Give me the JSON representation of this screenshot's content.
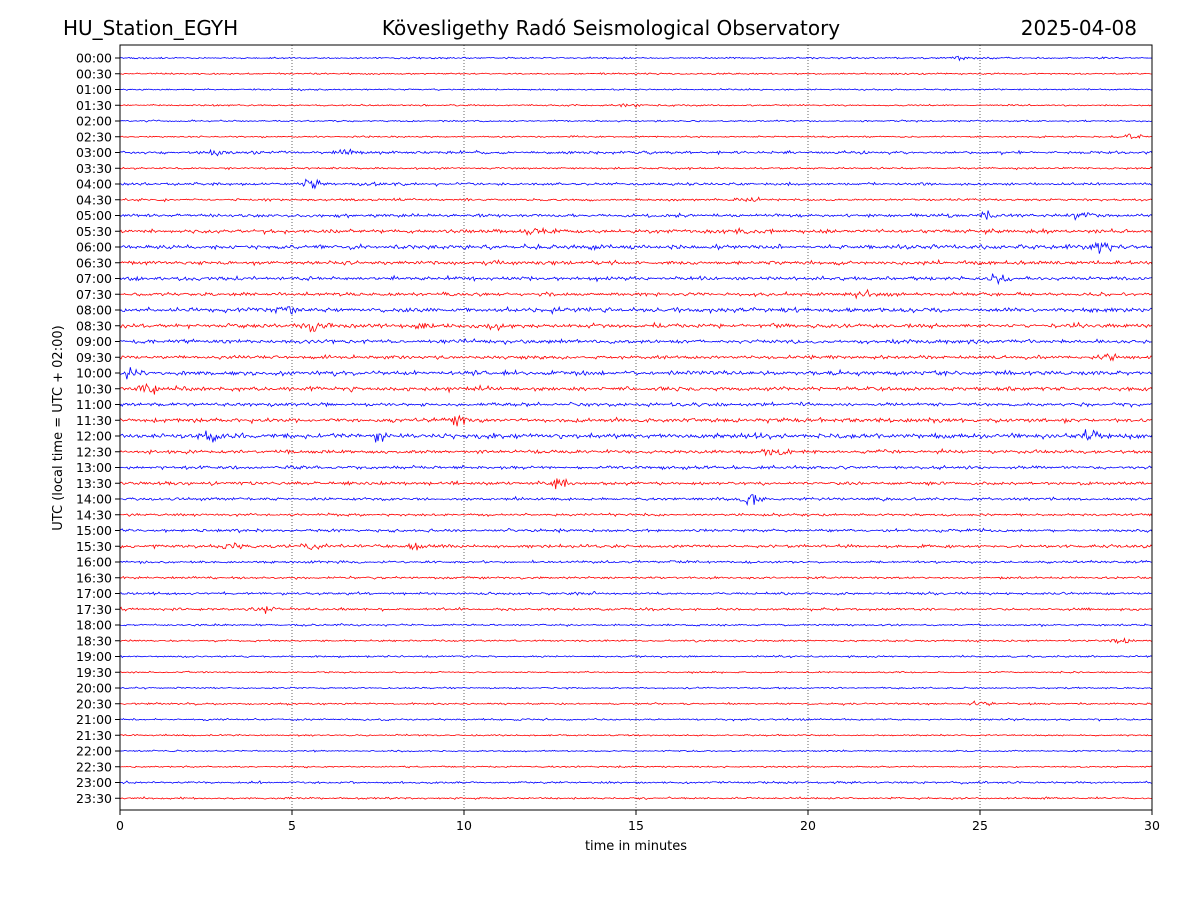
{
  "header": {
    "station": "HU_Station_EGYH",
    "observatory": "Kövesligethy Radó Seismological Observatory",
    "date": "2025-04-08"
  },
  "chart_data": {
    "type": "line",
    "title": "Kövesligethy Radó Seismological Observatory",
    "xlabel": "time in minutes",
    "ylabel": "UTC (local time = UTC + 02:00)",
    "xlim": [
      0,
      30
    ],
    "x_ticks": [
      0,
      5,
      10,
      15,
      20,
      25,
      30
    ],
    "x_tick_labels": [
      "0",
      "5",
      "10",
      "15",
      "20",
      "25",
      "30"
    ],
    "grid": "vertical dotted at 5-minute intervals",
    "legend": "none",
    "trace_colors": [
      "#0000ff",
      "#ff0000"
    ],
    "trace_labels": [
      "00:00",
      "00:30",
      "01:00",
      "01:30",
      "02:00",
      "02:30",
      "03:00",
      "03:30",
      "04:00",
      "04:30",
      "05:00",
      "05:30",
      "06:00",
      "06:30",
      "07:00",
      "07:30",
      "08:00",
      "08:30",
      "09:00",
      "09:30",
      "10:00",
      "10:30",
      "11:00",
      "11:30",
      "12:00",
      "12:30",
      "13:00",
      "13:30",
      "14:00",
      "14:30",
      "15:00",
      "15:30",
      "16:00",
      "16:30",
      "17:00",
      "17:30",
      "18:00",
      "18:30",
      "19:00",
      "19:30",
      "20:00",
      "20:30",
      "21:00",
      "21:30",
      "22:00",
      "22:30",
      "23:00",
      "23:30"
    ],
    "trace_noise_level": [
      0.5,
      0.5,
      0.5,
      0.5,
      0.5,
      0.5,
      0.9,
      0.6,
      0.8,
      0.7,
      1.0,
      1.1,
      1.3,
      1.1,
      1.1,
      1.1,
      1.4,
      1.3,
      1.2,
      1.1,
      1.4,
      1.3,
      1.1,
      1.3,
      1.5,
      1.1,
      1.0,
      1.0,
      0.9,
      0.8,
      0.9,
      1.0,
      0.8,
      0.7,
      0.8,
      0.8,
      0.6,
      0.6,
      0.6,
      0.5,
      0.5,
      0.6,
      0.6,
      0.5,
      0.5,
      0.5,
      0.7,
      0.6
    ],
    "events": [
      {
        "trace": "00:00",
        "minute": 24.5,
        "amplitude": 1.2
      },
      {
        "trace": "01:30",
        "minute": 14.8,
        "amplitude": 1.5
      },
      {
        "trace": "02:30",
        "minute": 29.5,
        "amplitude": 2.0
      },
      {
        "trace": "03:00",
        "minute": 2.8,
        "amplitude": 2.5
      },
      {
        "trace": "03:00",
        "minute": 6.5,
        "amplitude": 1.8
      },
      {
        "trace": "04:00",
        "minute": 5.6,
        "amplitude": 3.0
      },
      {
        "trace": "04:00",
        "minute": 7.5,
        "amplitude": 1.5
      },
      {
        "trace": "04:30",
        "minute": 18.3,
        "amplitude": 2.0
      },
      {
        "trace": "05:00",
        "minute": 25.2,
        "amplitude": 2.0
      },
      {
        "trace": "05:00",
        "minute": 28.0,
        "amplitude": 2.0
      },
      {
        "trace": "05:30",
        "minute": 12.0,
        "amplitude": 1.8
      },
      {
        "trace": "05:30",
        "minute": 18.0,
        "amplitude": 1.5
      },
      {
        "trace": "06:00",
        "minute": 28.5,
        "amplitude": 2.8
      },
      {
        "trace": "07:00",
        "minute": 25.5,
        "amplitude": 3.0
      },
      {
        "trace": "07:30",
        "minute": 21.6,
        "amplitude": 2.5
      },
      {
        "trace": "08:00",
        "minute": 4.8,
        "amplitude": 2.5
      },
      {
        "trace": "08:30",
        "minute": 5.7,
        "amplitude": 3.0
      },
      {
        "trace": "08:30",
        "minute": 8.8,
        "amplitude": 2.5
      },
      {
        "trace": "08:30",
        "minute": 10.8,
        "amplitude": 2.0
      },
      {
        "trace": "09:30",
        "minute": 28.7,
        "amplitude": 2.0
      },
      {
        "trace": "10:00",
        "minute": 0.3,
        "amplitude": 3.0
      },
      {
        "trace": "10:30",
        "minute": 0.8,
        "amplitude": 3.5
      },
      {
        "trace": "11:30",
        "minute": 9.8,
        "amplitude": 3.5
      },
      {
        "trace": "12:00",
        "minute": 2.6,
        "amplitude": 2.5
      },
      {
        "trace": "12:00",
        "minute": 7.5,
        "amplitude": 2.5
      },
      {
        "trace": "12:00",
        "minute": 28.2,
        "amplitude": 4.0
      },
      {
        "trace": "12:30",
        "minute": 19.0,
        "amplitude": 3.0
      },
      {
        "trace": "13:30",
        "minute": 12.8,
        "amplitude": 3.0
      },
      {
        "trace": "14:00",
        "minute": 18.3,
        "amplitude": 4.0
      },
      {
        "trace": "15:30",
        "minute": 3.3,
        "amplitude": 2.5
      },
      {
        "trace": "15:30",
        "minute": 5.5,
        "amplitude": 2.5
      },
      {
        "trace": "15:30",
        "minute": 8.7,
        "amplitude": 2.5
      },
      {
        "trace": "17:30",
        "minute": 4.2,
        "amplitude": 2.5
      },
      {
        "trace": "18:30",
        "minute": 29.1,
        "amplitude": 2.5
      },
      {
        "trace": "20:30",
        "minute": 25.0,
        "amplitude": 1.8
      }
    ]
  }
}
